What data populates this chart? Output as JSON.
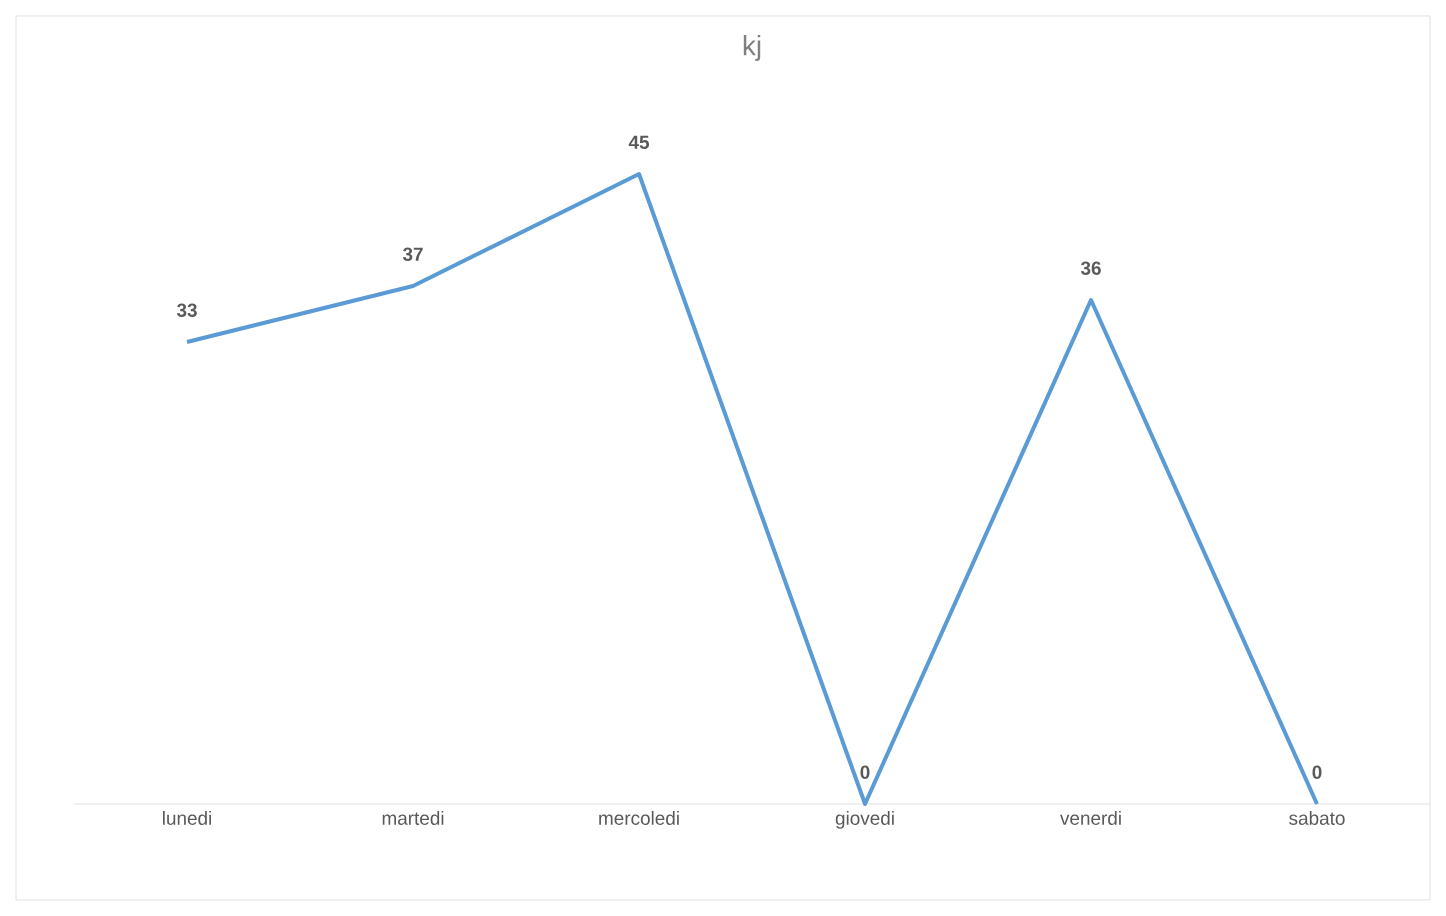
{
  "chart_data": {
    "type": "line",
    "title": "kj",
    "categories": [
      "lunedi",
      "martedi",
      "mercoledi",
      "giovedi",
      "venerdi",
      "sabato"
    ],
    "values": [
      33,
      37,
      45,
      0,
      36,
      0
    ],
    "color": "#5b9bd5",
    "data_labels": true,
    "marker": "none",
    "line_style": "solid"
  }
}
